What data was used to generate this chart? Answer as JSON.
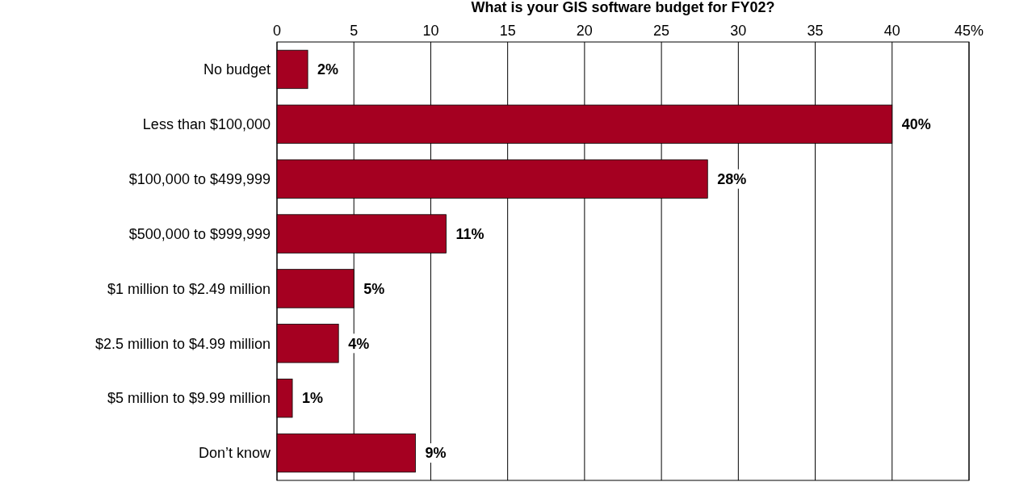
{
  "chart_data": {
    "type": "bar",
    "orientation": "horizontal",
    "title": "What is your GIS software budget for FY02?",
    "categories": [
      "No budget",
      "Less than $100,000",
      "$100,000 to $499,999",
      "$500,000 to $999,999",
      "$1 million to $2.49 million",
      "$2.5 million to $4.99 million",
      "$5 million to $9.99 million",
      "Don’t know"
    ],
    "values": [
      2,
      40,
      28,
      11,
      5,
      4,
      1,
      9
    ],
    "value_labels": [
      "2%",
      "40%",
      "28%",
      "11%",
      "5%",
      "4%",
      "1%",
      "9%"
    ],
    "color": "#a50021",
    "xlim": [
      0,
      45
    ],
    "xticks": [
      0,
      5,
      10,
      15,
      20,
      25,
      30,
      35,
      40,
      {
        "value": 45,
        "label": "45%"
      }
    ],
    "grid": "x"
  }
}
